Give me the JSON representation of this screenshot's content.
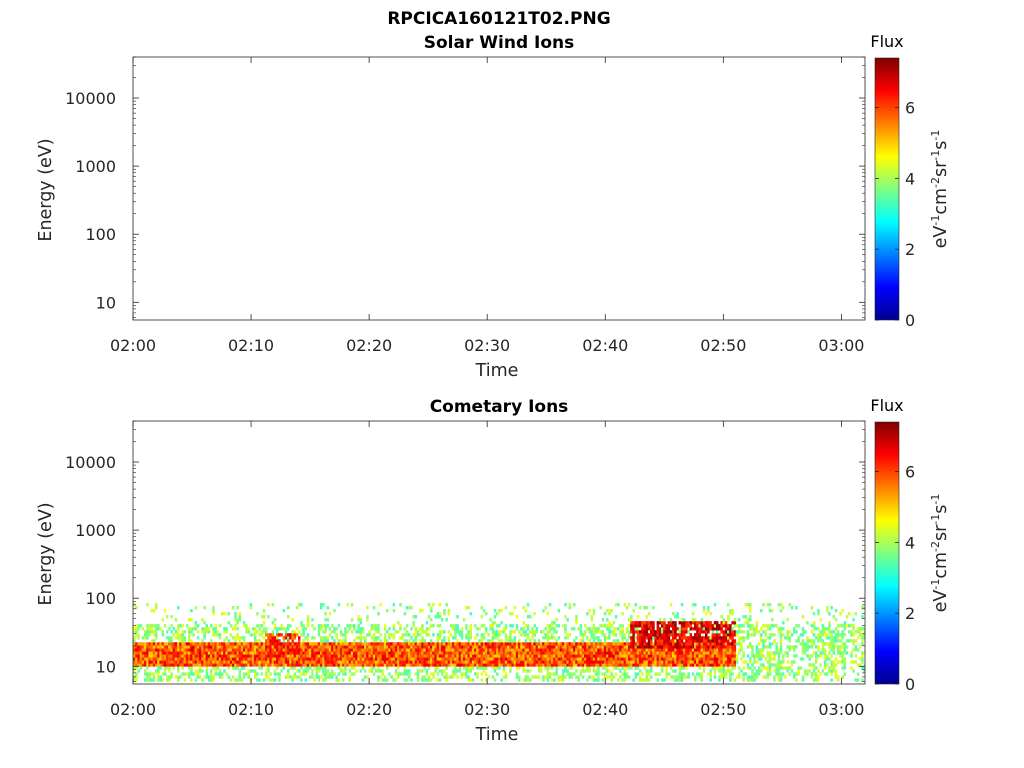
{
  "figure": {
    "title": "RPCICA160121T02.PNG"
  },
  "chart_data": [
    {
      "type": "heatmap",
      "title": "Solar Wind Ions",
      "xlabel": "Time",
      "ylabel": "Energy (eV)",
      "x_ticks": [
        "02:00",
        "02:10",
        "02:20",
        "02:30",
        "02:40",
        "02:50",
        "03:00"
      ],
      "xlim": [
        "02:00",
        "03:02"
      ],
      "y_ticks": [
        "10",
        "100",
        "1000",
        "10000"
      ],
      "y_tick_values": [
        10,
        100,
        1000,
        10000
      ],
      "yscale": "log",
      "ylim": [
        5.5,
        40000
      ],
      "colorbar": {
        "title": "Flux",
        "label": "eV-1cm-2sr-1s-1",
        "label_parts": [
          [
            "eV",
            ""
          ],
          [
            "-1",
            "sup"
          ],
          [
            "cm",
            ""
          ],
          [
            "-2",
            "sup"
          ],
          [
            "sr",
            ""
          ],
          [
            "-1",
            "sup"
          ],
          [
            "s",
            ""
          ],
          [
            "-1",
            "sup"
          ]
        ],
        "ticks": [
          "0",
          "2",
          "4",
          "6"
        ],
        "tick_values": [
          0,
          2,
          4,
          6
        ],
        "range": [
          0,
          7.4
        ],
        "colormap": "jet"
      },
      "data": {
        "description_level": "empty",
        "bands": []
      }
    },
    {
      "type": "heatmap",
      "title": "Cometary Ions",
      "xlabel": "Time",
      "ylabel": "Energy (eV)",
      "x_ticks": [
        "02:00",
        "02:10",
        "02:20",
        "02:30",
        "02:40",
        "02:50",
        "03:00"
      ],
      "xlim": [
        "02:00",
        "03:02"
      ],
      "y_ticks": [
        "10",
        "100",
        "1000",
        "10000"
      ],
      "y_tick_values": [
        10,
        100,
        1000,
        10000
      ],
      "yscale": "log",
      "ylim": [
        5.5,
        40000
      ],
      "colorbar": {
        "title": "Flux",
        "label": "eV-1cm-2sr-1s-1",
        "label_parts": [
          [
            "eV",
            ""
          ],
          [
            "-1",
            "sup"
          ],
          [
            "cm",
            ""
          ],
          [
            "-2",
            "sup"
          ],
          [
            "sr",
            ""
          ],
          [
            "-1",
            "sup"
          ],
          [
            "s",
            ""
          ],
          [
            "-1",
            "sup"
          ]
        ],
        "ticks": [
          "0",
          "2",
          "4",
          "6"
        ],
        "tick_values": [
          0,
          2,
          4,
          6
        ],
        "range": [
          0,
          7.4
        ],
        "colormap": "jet"
      },
      "data": {
        "energy_range_max_eV": 85,
        "energy_range_min_eV": 6,
        "core_band": {
          "time_start": "02:00",
          "time_end": "02:51",
          "energy_low_eV": 10,
          "energy_high_eV": 22,
          "typical_flux": 6.0
        },
        "diffuse_band": {
          "time_start": "02:00",
          "time_end": "03:02",
          "energy_low_eV": 6,
          "energy_high_eV": 85,
          "typical_flux": 3.8
        },
        "enhancements": [
          {
            "time_start": "02:11",
            "time_end": "02:14",
            "energy_low_eV": 14,
            "energy_high_eV": 30,
            "peak_flux": 6.6
          },
          {
            "time_start": "02:42",
            "time_end": "02:51",
            "energy_low_eV": 18,
            "energy_high_eV": 45,
            "peak_flux": 7.2
          }
        ]
      }
    }
  ]
}
